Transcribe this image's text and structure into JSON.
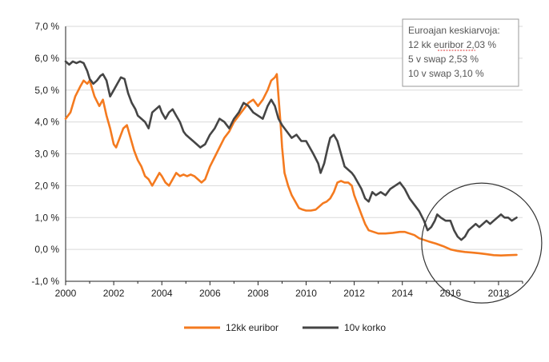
{
  "chart_data": {
    "type": "line",
    "title": "",
    "xlabel": "",
    "ylabel": "",
    "xlim": [
      2000,
      2019
    ],
    "ylim": [
      -1,
      7
    ],
    "y_ticks": [
      {
        "value": -1,
        "label": "-1,0 %"
      },
      {
        "value": 0,
        "label": "0,0 %"
      },
      {
        "value": 1,
        "label": "1,0 %"
      },
      {
        "value": 2,
        "label": "2,0 %"
      },
      {
        "value": 3,
        "label": "3,0 %"
      },
      {
        "value": 4,
        "label": "4,0 %"
      },
      {
        "value": 5,
        "label": "5,0 %"
      },
      {
        "value": 6,
        "label": "6,0 %"
      },
      {
        "value": 7,
        "label": "7,0 %"
      }
    ],
    "x_ticks": [
      {
        "value": 2000,
        "label": "2000"
      },
      {
        "value": 2002,
        "label": "2002"
      },
      {
        "value": 2004,
        "label": "2004"
      },
      {
        "value": 2006,
        "label": "2006"
      },
      {
        "value": 2008,
        "label": "2008"
      },
      {
        "value": 2010,
        "label": "2010"
      },
      {
        "value": 2012,
        "label": "2012"
      },
      {
        "value": 2014,
        "label": "2014"
      },
      {
        "value": 2016,
        "label": "2016"
      },
      {
        "value": 2018,
        "label": "2018"
      }
    ],
    "grid": "horizontal",
    "legend_position": "bottom",
    "series": [
      {
        "name": "12kk euribor",
        "color": "#f47a1f",
        "points": [
          [
            2000.0,
            4.1
          ],
          [
            2000.2,
            4.3
          ],
          [
            2000.4,
            4.8
          ],
          [
            2000.6,
            5.1
          ],
          [
            2000.75,
            5.3
          ],
          [
            2000.9,
            5.2
          ],
          [
            2001.0,
            5.3
          ],
          [
            2001.2,
            4.8
          ],
          [
            2001.4,
            4.5
          ],
          [
            2001.55,
            4.7
          ],
          [
            2001.7,
            4.2
          ],
          [
            2001.85,
            3.8
          ],
          [
            2002.0,
            3.3
          ],
          [
            2002.1,
            3.2
          ],
          [
            2002.25,
            3.5
          ],
          [
            2002.4,
            3.8
          ],
          [
            2002.55,
            3.9
          ],
          [
            2002.7,
            3.5
          ],
          [
            2002.85,
            3.1
          ],
          [
            2003.0,
            2.8
          ],
          [
            2003.15,
            2.6
          ],
          [
            2003.3,
            2.3
          ],
          [
            2003.45,
            2.2
          ],
          [
            2003.6,
            2.0
          ],
          [
            2003.75,
            2.2
          ],
          [
            2003.9,
            2.4
          ],
          [
            2004.0,
            2.3
          ],
          [
            2004.15,
            2.1
          ],
          [
            2004.3,
            2.0
          ],
          [
            2004.45,
            2.2
          ],
          [
            2004.6,
            2.4
          ],
          [
            2004.75,
            2.3
          ],
          [
            2004.9,
            2.35
          ],
          [
            2005.05,
            2.3
          ],
          [
            2005.2,
            2.35
          ],
          [
            2005.35,
            2.3
          ],
          [
            2005.5,
            2.2
          ],
          [
            2005.65,
            2.1
          ],
          [
            2005.8,
            2.2
          ],
          [
            2006.0,
            2.6
          ],
          [
            2006.2,
            2.9
          ],
          [
            2006.4,
            3.2
          ],
          [
            2006.6,
            3.5
          ],
          [
            2006.8,
            3.7
          ],
          [
            2007.0,
            4.0
          ],
          [
            2007.2,
            4.2
          ],
          [
            2007.4,
            4.4
          ],
          [
            2007.6,
            4.6
          ],
          [
            2007.8,
            4.7
          ],
          [
            2008.0,
            4.5
          ],
          [
            2008.2,
            4.7
          ],
          [
            2008.4,
            5.0
          ],
          [
            2008.55,
            5.3
          ],
          [
            2008.7,
            5.4
          ],
          [
            2008.78,
            5.5
          ],
          [
            2008.85,
            4.8
          ],
          [
            2008.95,
            3.8
          ],
          [
            2009.0,
            3.2
          ],
          [
            2009.1,
            2.4
          ],
          [
            2009.25,
            2.0
          ],
          [
            2009.4,
            1.7
          ],
          [
            2009.55,
            1.5
          ],
          [
            2009.7,
            1.3
          ],
          [
            2009.85,
            1.25
          ],
          [
            2010.0,
            1.22
          ],
          [
            2010.2,
            1.22
          ],
          [
            2010.4,
            1.25
          ],
          [
            2010.55,
            1.35
          ],
          [
            2010.7,
            1.45
          ],
          [
            2010.85,
            1.5
          ],
          [
            2011.0,
            1.6
          ],
          [
            2011.15,
            1.8
          ],
          [
            2011.3,
            2.1
          ],
          [
            2011.45,
            2.15
          ],
          [
            2011.6,
            2.1
          ],
          [
            2011.75,
            2.1
          ],
          [
            2011.9,
            2.0
          ],
          [
            2012.0,
            1.7
          ],
          [
            2012.15,
            1.4
          ],
          [
            2012.3,
            1.1
          ],
          [
            2012.45,
            0.8
          ],
          [
            2012.6,
            0.6
          ],
          [
            2012.8,
            0.55
          ],
          [
            2013.0,
            0.5
          ],
          [
            2013.3,
            0.5
          ],
          [
            2013.6,
            0.52
          ],
          [
            2013.9,
            0.55
          ],
          [
            2014.1,
            0.55
          ],
          [
            2014.3,
            0.5
          ],
          [
            2014.5,
            0.45
          ],
          [
            2014.7,
            0.35
          ],
          [
            2014.9,
            0.3
          ],
          [
            2015.1,
            0.25
          ],
          [
            2015.4,
            0.18
          ],
          [
            2015.7,
            0.1
          ],
          [
            2016.0,
            0.0
          ],
          [
            2016.3,
            -0.05
          ],
          [
            2016.6,
            -0.08
          ],
          [
            2016.9,
            -0.1
          ],
          [
            2017.2,
            -0.12
          ],
          [
            2017.5,
            -0.15
          ],
          [
            2017.8,
            -0.18
          ],
          [
            2018.1,
            -0.19
          ],
          [
            2018.4,
            -0.18
          ],
          [
            2018.75,
            -0.17
          ]
        ]
      },
      {
        "name": "10v korko",
        "color": "#454545",
        "points": [
          [
            2000.0,
            5.9
          ],
          [
            2000.15,
            5.8
          ],
          [
            2000.3,
            5.9
          ],
          [
            2000.45,
            5.85
          ],
          [
            2000.6,
            5.9
          ],
          [
            2000.75,
            5.85
          ],
          [
            2000.9,
            5.6
          ],
          [
            2001.0,
            5.35
          ],
          [
            2001.15,
            5.2
          ],
          [
            2001.3,
            5.3
          ],
          [
            2001.45,
            5.45
          ],
          [
            2001.55,
            5.5
          ],
          [
            2001.7,
            5.3
          ],
          [
            2001.85,
            4.8
          ],
          [
            2002.0,
            5.0
          ],
          [
            2002.15,
            5.2
          ],
          [
            2002.3,
            5.4
          ],
          [
            2002.45,
            5.35
          ],
          [
            2002.6,
            4.9
          ],
          [
            2002.75,
            4.6
          ],
          [
            2002.9,
            4.4
          ],
          [
            2003.0,
            4.2
          ],
          [
            2003.15,
            4.1
          ],
          [
            2003.3,
            4.0
          ],
          [
            2003.45,
            3.8
          ],
          [
            2003.6,
            4.3
          ],
          [
            2003.75,
            4.4
          ],
          [
            2003.9,
            4.5
          ],
          [
            2004.0,
            4.3
          ],
          [
            2004.15,
            4.1
          ],
          [
            2004.3,
            4.3
          ],
          [
            2004.45,
            4.4
          ],
          [
            2004.6,
            4.2
          ],
          [
            2004.75,
            4.0
          ],
          [
            2004.9,
            3.7
          ],
          [
            2005.0,
            3.6
          ],
          [
            2005.15,
            3.5
          ],
          [
            2005.3,
            3.4
          ],
          [
            2005.45,
            3.3
          ],
          [
            2005.6,
            3.2
          ],
          [
            2005.8,
            3.3
          ],
          [
            2006.0,
            3.6
          ],
          [
            2006.2,
            3.8
          ],
          [
            2006.4,
            4.1
          ],
          [
            2006.6,
            4.0
          ],
          [
            2006.8,
            3.8
          ],
          [
            2007.0,
            4.1
          ],
          [
            2007.2,
            4.3
          ],
          [
            2007.4,
            4.6
          ],
          [
            2007.6,
            4.5
          ],
          [
            2007.8,
            4.3
          ],
          [
            2008.0,
            4.2
          ],
          [
            2008.2,
            4.1
          ],
          [
            2008.4,
            4.5
          ],
          [
            2008.55,
            4.7
          ],
          [
            2008.7,
            4.5
          ],
          [
            2008.85,
            4.1
          ],
          [
            2009.0,
            3.9
          ],
          [
            2009.2,
            3.7
          ],
          [
            2009.4,
            3.5
          ],
          [
            2009.6,
            3.6
          ],
          [
            2009.8,
            3.4
          ],
          [
            2010.0,
            3.4
          ],
          [
            2010.15,
            3.2
          ],
          [
            2010.3,
            3.0
          ],
          [
            2010.5,
            2.7
          ],
          [
            2010.6,
            2.4
          ],
          [
            2010.75,
            2.7
          ],
          [
            2010.9,
            3.2
          ],
          [
            2011.0,
            3.5
          ],
          [
            2011.15,
            3.6
          ],
          [
            2011.3,
            3.4
          ],
          [
            2011.45,
            3.0
          ],
          [
            2011.6,
            2.6
          ],
          [
            2011.75,
            2.5
          ],
          [
            2011.9,
            2.4
          ],
          [
            2012.0,
            2.3
          ],
          [
            2012.15,
            2.1
          ],
          [
            2012.3,
            1.9
          ],
          [
            2012.45,
            1.6
          ],
          [
            2012.6,
            1.5
          ],
          [
            2012.75,
            1.8
          ],
          [
            2012.9,
            1.7
          ],
          [
            2013.1,
            1.8
          ],
          [
            2013.3,
            1.7
          ],
          [
            2013.5,
            1.9
          ],
          [
            2013.7,
            2.0
          ],
          [
            2013.9,
            2.1
          ],
          [
            2014.1,
            1.9
          ],
          [
            2014.3,
            1.6
          ],
          [
            2014.5,
            1.4
          ],
          [
            2014.7,
            1.2
          ],
          [
            2014.9,
            0.9
          ],
          [
            2015.05,
            0.6
          ],
          [
            2015.2,
            0.7
          ],
          [
            2015.35,
            0.9
          ],
          [
            2015.45,
            1.1
          ],
          [
            2015.6,
            1.0
          ],
          [
            2015.8,
            0.9
          ],
          [
            2016.0,
            0.9
          ],
          [
            2016.15,
            0.6
          ],
          [
            2016.3,
            0.4
          ],
          [
            2016.45,
            0.3
          ],
          [
            2016.6,
            0.4
          ],
          [
            2016.75,
            0.6
          ],
          [
            2016.9,
            0.7
          ],
          [
            2017.05,
            0.8
          ],
          [
            2017.2,
            0.7
          ],
          [
            2017.35,
            0.8
          ],
          [
            2017.5,
            0.9
          ],
          [
            2017.65,
            0.8
          ],
          [
            2017.8,
            0.9
          ],
          [
            2017.95,
            1.0
          ],
          [
            2018.1,
            1.1
          ],
          [
            2018.25,
            1.0
          ],
          [
            2018.4,
            1.0
          ],
          [
            2018.55,
            0.9
          ],
          [
            2018.75,
            1.0
          ]
        ]
      }
    ],
    "annotation": {
      "lines": [
        "Euroajan keskiarvoja:",
        "12 kk euribor 2,03 %",
        "5 v swap 2,53 %",
        "10 v swap 3,10 %"
      ]
    },
    "highlight_circle": {
      "center_x": 2017.3,
      "center_y": 0.2
    }
  }
}
